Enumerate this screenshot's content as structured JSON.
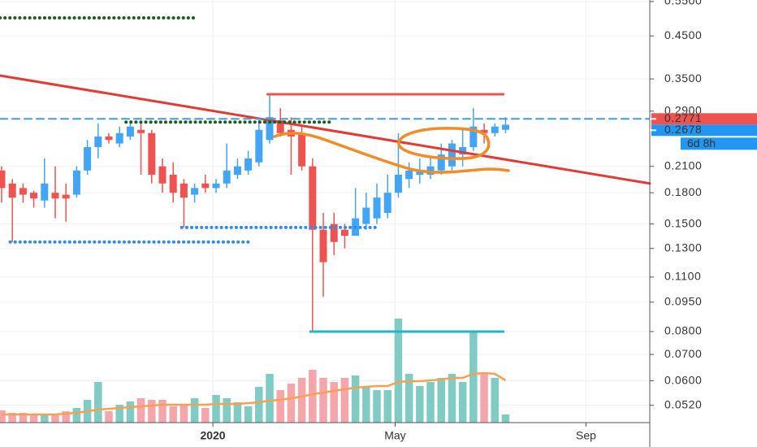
{
  "chart_data": {
    "type": "candlestick",
    "log_scale": true,
    "grid": true,
    "ylim": [
      0.047,
      0.555
    ],
    "yticks": [
      {
        "value": 0.55,
        "label": "0.5500"
      },
      {
        "value": 0.45,
        "label": "0.4500"
      },
      {
        "value": 0.35,
        "label": "0.3500"
      },
      {
        "value": 0.29,
        "label": "0.2900"
      },
      {
        "value": 0.21,
        "label": "0.2100"
      },
      {
        "value": 0.18,
        "label": "0.1800"
      },
      {
        "value": 0.15,
        "label": "0.1500"
      },
      {
        "value": 0.13,
        "label": "0.1300"
      },
      {
        "value": 0.11,
        "label": "0.1100"
      },
      {
        "value": 0.095,
        "label": "0.0950"
      },
      {
        "value": 0.08,
        "label": "0.0800"
      },
      {
        "value": 0.07,
        "label": "0.0700"
      },
      {
        "value": 0.06,
        "label": "0.0600"
      },
      {
        "value": 0.052,
        "label": "0.0520"
      }
    ],
    "xlim": [
      -0.15,
      60.45
    ],
    "xticks": [
      {
        "value": 19.7,
        "label": "2020"
      },
      {
        "value": 36.7,
        "label": "May"
      },
      {
        "value": 54.5,
        "label": "Sep"
      }
    ],
    "up_color": "#42a5f5",
    "down_color": "#ef5350",
    "open": [
      0.205,
      0.19,
      0.185,
      0.18,
      0.172,
      0.18,
      0.178,
      0.178,
      0.205,
      0.235,
      0.25,
      0.24,
      0.25,
      0.26,
      0.255,
      0.21,
      0.2,
      0.19,
      0.178,
      0.19,
      0.185,
      0.19,
      0.2,
      0.205,
      0.215,
      0.245,
      0.275,
      0.26,
      0.255,
      0.21,
      0.145,
      0.15,
      0.145,
      0.14,
      0.15,
      0.155,
      0.16,
      0.18,
      0.195,
      0.2,
      0.2,
      0.205,
      0.21,
      0.225,
      0.235,
      0.26,
      0.255,
      0.26
    ],
    "high": [
      0.21,
      0.195,
      0.19,
      0.182,
      0.22,
      0.21,
      0.19,
      0.21,
      0.245,
      0.27,
      0.255,
      0.265,
      0.275,
      0.27,
      0.26,
      0.22,
      0.215,
      0.195,
      0.19,
      0.2,
      0.195,
      0.24,
      0.22,
      0.23,
      0.275,
      0.32,
      0.295,
      0.28,
      0.265,
      0.22,
      0.16,
      0.16,
      0.15,
      0.185,
      0.18,
      0.19,
      0.2,
      0.255,
      0.215,
      0.22,
      0.22,
      0.24,
      0.245,
      0.26,
      0.295,
      0.27,
      0.27,
      0.28
    ],
    "low": [
      0.17,
      0.135,
      0.17,
      0.165,
      0.165,
      0.155,
      0.152,
      0.175,
      0.2,
      0.22,
      0.24,
      0.235,
      0.245,
      0.2,
      0.19,
      0.18,
      0.17,
      0.147,
      0.17,
      0.18,
      0.18,
      0.185,
      0.195,
      0.2,
      0.21,
      0.24,
      0.25,
      0.2,
      0.205,
      0.08,
      0.098,
      0.125,
      0.13,
      0.14,
      0.145,
      0.15,
      0.155,
      0.175,
      0.185,
      0.19,
      0.195,
      0.2,
      0.205,
      0.21,
      0.23,
      0.24,
      0.25,
      0.255
    ],
    "close": [
      0.185,
      0.175,
      0.178,
      0.174,
      0.19,
      0.174,
      0.174,
      0.205,
      0.235,
      0.25,
      0.245,
      0.255,
      0.265,
      0.255,
      0.2,
      0.19,
      0.18,
      0.175,
      0.185,
      0.185,
      0.19,
      0.205,
      0.21,
      0.22,
      0.26,
      0.28,
      0.255,
      0.25,
      0.21,
      0.145,
      0.12,
      0.135,
      0.14,
      0.155,
      0.165,
      0.175,
      0.18,
      0.2,
      0.205,
      0.205,
      0.21,
      0.225,
      0.24,
      0.235,
      0.265,
      0.255,
      0.265,
      0.2678
    ],
    "volume": [
      15,
      12,
      12,
      10,
      10,
      10,
      14,
      18,
      28,
      50,
      14,
      22,
      26,
      30,
      28,
      28,
      20,
      22,
      30,
      18,
      34,
      30,
      25,
      20,
      44,
      60,
      40,
      48,
      55,
      65,
      55,
      50,
      55,
      58,
      45,
      40,
      40,
      128,
      60,
      45,
      50,
      55,
      60,
      50,
      112,
      62,
      55,
      10
    ],
    "volume_ma": [
      10,
      10,
      10,
      10,
      10,
      10,
      11,
      12,
      14,
      16,
      17,
      18,
      19,
      20,
      21,
      22,
      22,
      22,
      22,
      22,
      23,
      23,
      23,
      24,
      25,
      27,
      28,
      30,
      32,
      35,
      37,
      39,
      41,
      43,
      44,
      45,
      45,
      50,
      51,
      51,
      52,
      53,
      55,
      55,
      60,
      61,
      60,
      52
    ],
    "volume_lim": [
      0,
      140
    ],
    "volume_up_color": "#80cbc4",
    "volume_down_color": "#f4a6aa",
    "volume_ma_color": "#f7a150",
    "drawings": [
      {
        "type": "trend",
        "x": [
          -0.15,
          60.45
        ],
        "values": [
          0.357,
          0.19
        ],
        "color": "#e53935",
        "style": "solid"
      },
      {
        "type": "hline",
        "x": [
          24.8,
          46.8
        ],
        "value": 0.32,
        "color": "#ef5350",
        "style": "solid"
      },
      {
        "type": "hline",
        "x": [
          28.8,
          46.8
        ],
        "value": 0.08,
        "color": "#26b5c7",
        "style": "solid"
      },
      {
        "type": "hline",
        "x": [
          -0.15,
          18.0
        ],
        "value": 0.5,
        "color": "#1b5e20",
        "style": "dotted"
      },
      {
        "type": "hline",
        "x": [
          11.6,
          30.8
        ],
        "value": 0.272,
        "color": "#1b5e20",
        "style": "dotted"
      },
      {
        "type": "hline",
        "x": [
          0.8,
          23.0
        ],
        "value": 0.135,
        "color": "#2f8de4",
        "style": "dotted"
      },
      {
        "type": "hline",
        "x": [
          16.8,
          35.0
        ],
        "value": 0.147,
        "color": "#2f8de4",
        "style": "dotted"
      },
      {
        "type": "hline",
        "x": [
          -0.15,
          60.45
        ],
        "value": 0.2771,
        "color": "#3d9be9",
        "style": "dashed"
      }
    ],
    "price_labels": [
      {
        "value": 0.2771,
        "label": "0.2771",
        "color": "#ef5350"
      },
      {
        "value": 0.2678,
        "label": "0.2678",
        "color": "#2196f3"
      }
    ],
    "countdown": "6d 8h"
  }
}
